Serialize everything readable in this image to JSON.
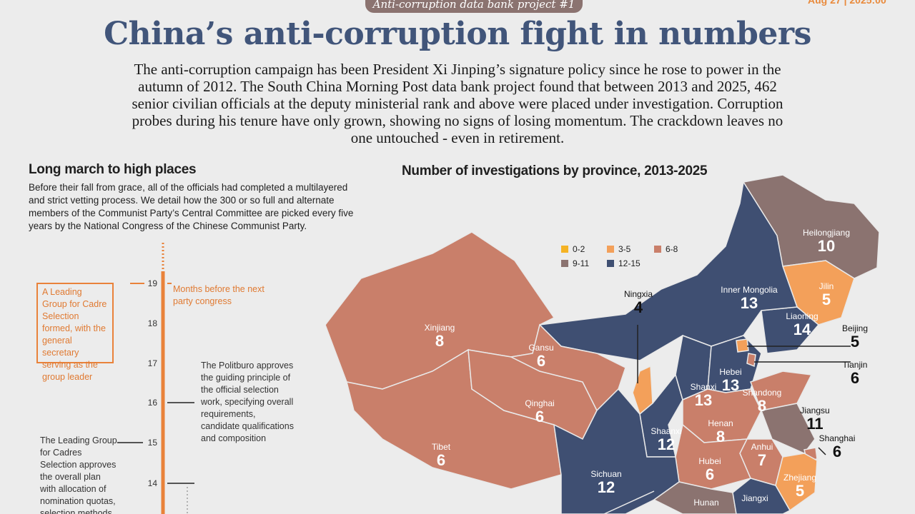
{
  "header": {
    "tag": "Anti-corruption data bank project #1",
    "date": "Aug 27 | 2025:00",
    "title": "China’s anti-corruption fight in numbers",
    "intro": "The anti-corruption campaign has been President Xi Jinping’s signature policy since he rose to power in the autumn of 2012. The South China Morning Post data bank project found that between 2013 and 2025, 462 senior civilian officials at the deputy ministerial rank and above were placed under investigation. Corruption probes during his tenure have only grown, showing no signs of losing momentum. The crackdown leaves no one untouched - even in retirement."
  },
  "left": {
    "heading": "Long march to high places",
    "text": "Before their fall from grace, all of the officials had completed a multilayered and strict vetting process. We detail how the 300 or so full and alternate members of the Communist Party’s Central Committee are picked every five years by the National Congress of the Chinese Communist Party.",
    "months_label": "Months before the next party congress",
    "ticks": [
      "19",
      "18",
      "17",
      "16",
      "15",
      "14"
    ],
    "box_text": "A Leading Group for Cadre Selection formed, with the general secretary serving as the group leader",
    "note16": "The Politburo approves the guiding principle of the official selection work, specifying overall requirements, candidate qualifications and composition",
    "note15": "The Leading Group for Cadres Selection approves the overall plan with allocation of nomination quotas, selection methods and"
  },
  "map": {
    "heading": "Number of investigations by province, 2013-2025",
    "legend": [
      {
        "label": "0-2",
        "color": "#f5b324"
      },
      {
        "label": "3-5",
        "color": "#f3a05a"
      },
      {
        "label": "6-8",
        "color": "#c97f6a"
      },
      {
        "label": "9-11",
        "color": "#8b7370"
      },
      {
        "label": "12-15",
        "color": "#3f4f72"
      }
    ],
    "provinces": {
      "xinjiang": {
        "name": "Xinjiang",
        "value": "8"
      },
      "tibet": {
        "name": "Tibet",
        "value": "6"
      },
      "qinghai": {
        "name": "Qinghai",
        "value": "6"
      },
      "gansu": {
        "name": "Gansu",
        "value": "6"
      },
      "sichuan": {
        "name": "Sichuan",
        "value": "12"
      },
      "shaanxi": {
        "name": "Shaanxi",
        "value": "12"
      },
      "shanxi": {
        "name": "Shanxi",
        "value": "13"
      },
      "hebei": {
        "name": "Hebei",
        "value": "13"
      },
      "inner_mongolia": {
        "name": "Inner Mongolia",
        "value": "13"
      },
      "heilongjiang": {
        "name": "Heilongjiang",
        "value": "10"
      },
      "jilin": {
        "name": "Jilin",
        "value": "5"
      },
      "liaoning": {
        "name": "Liaoning",
        "value": "14"
      },
      "beijing": {
        "name": "Beijing",
        "value": "5"
      },
      "tianjin": {
        "name": "Tianjin",
        "value": "6"
      },
      "ningxia": {
        "name": "Ningxia",
        "value": "4"
      },
      "shandong": {
        "name": "Shandong",
        "value": "8"
      },
      "henan": {
        "name": "Henan",
        "value": "8"
      },
      "jiangsu": {
        "name": "Jiangsu",
        "value": "11"
      },
      "shanghai": {
        "name": "Shanghai",
        "value": "6"
      },
      "anhui": {
        "name": "Anhui",
        "value": "7"
      },
      "hubei": {
        "name": "Hubei",
        "value": "6"
      },
      "zhejiang": {
        "name": "Zhejiang",
        "value": "5"
      },
      "hunan": {
        "name": "Hunan",
        "value": ""
      },
      "jiangxi": {
        "name": "Jiangxi",
        "value": ""
      }
    }
  }
}
